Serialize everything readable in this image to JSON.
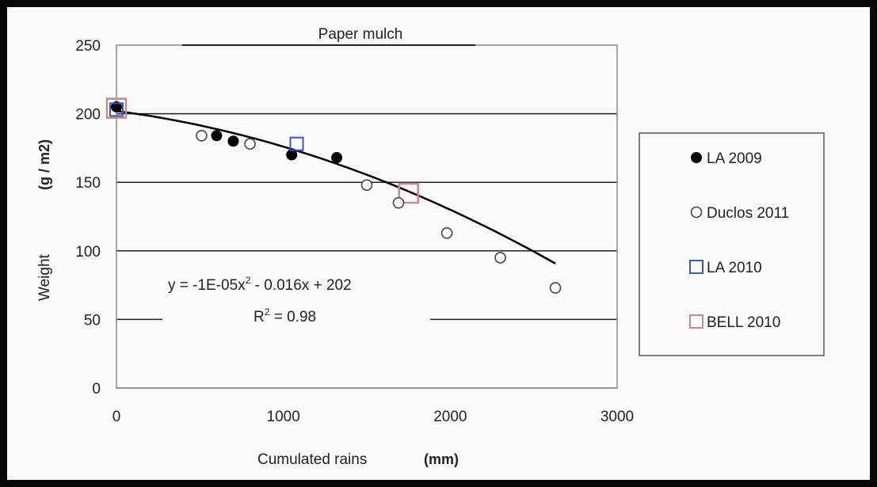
{
  "chart_data": {
    "type": "scatter",
    "title": "Paper mulch",
    "xlabel": "Cumulated rains",
    "xlabel_unit": "(mm)",
    "ylabel": "Weight",
    "ylabel_unit": "(g / m2)",
    "xlim": [
      0,
      3000
    ],
    "ylim": [
      0,
      250
    ],
    "xticks": [
      "0",
      "1000",
      "2000",
      "3000"
    ],
    "yticks": [
      "0",
      "50",
      "100",
      "150",
      "200",
      "250"
    ],
    "grid": "horizontal",
    "legend_position": "right",
    "series": [
      {
        "name": "LA 2009",
        "marker": "filled-circle",
        "color": "#000000",
        "x": [
          0,
          600,
          700,
          1050,
          1320
        ],
        "y": [
          205,
          184,
          180,
          170,
          168
        ]
      },
      {
        "name": "Duclos 2011",
        "marker": "open-circle",
        "color": "#444444",
        "x": [
          510,
          800,
          1500,
          1690,
          1980,
          2300,
          2630
        ],
        "y": [
          184,
          178,
          148,
          135,
          113,
          95,
          73
        ]
      },
      {
        "name": "LA 2010",
        "marker": "open-square",
        "color": "#3a55c8",
        "x": [
          0,
          1080
        ],
        "y": [
          203,
          178
        ]
      },
      {
        "name": "BELL 2010",
        "marker": "open-square-large",
        "color": "#c98a8c",
        "x": [
          0,
          1750
        ],
        "y": [
          204,
          142
        ]
      }
    ],
    "trendline": {
      "type": "polynomial",
      "a": -1e-05,
      "b": -0.016,
      "c": 202,
      "x_range": [
        0,
        2630
      ],
      "color": "#000000"
    },
    "annotations": {
      "equation_lead": "y = -1E-05x",
      "equation_sup": "2",
      "equation_tail": " - 0.016x + 202",
      "r2_lead": "R",
      "r2_sup": "2",
      "r2_tail": " = 0.98"
    }
  }
}
